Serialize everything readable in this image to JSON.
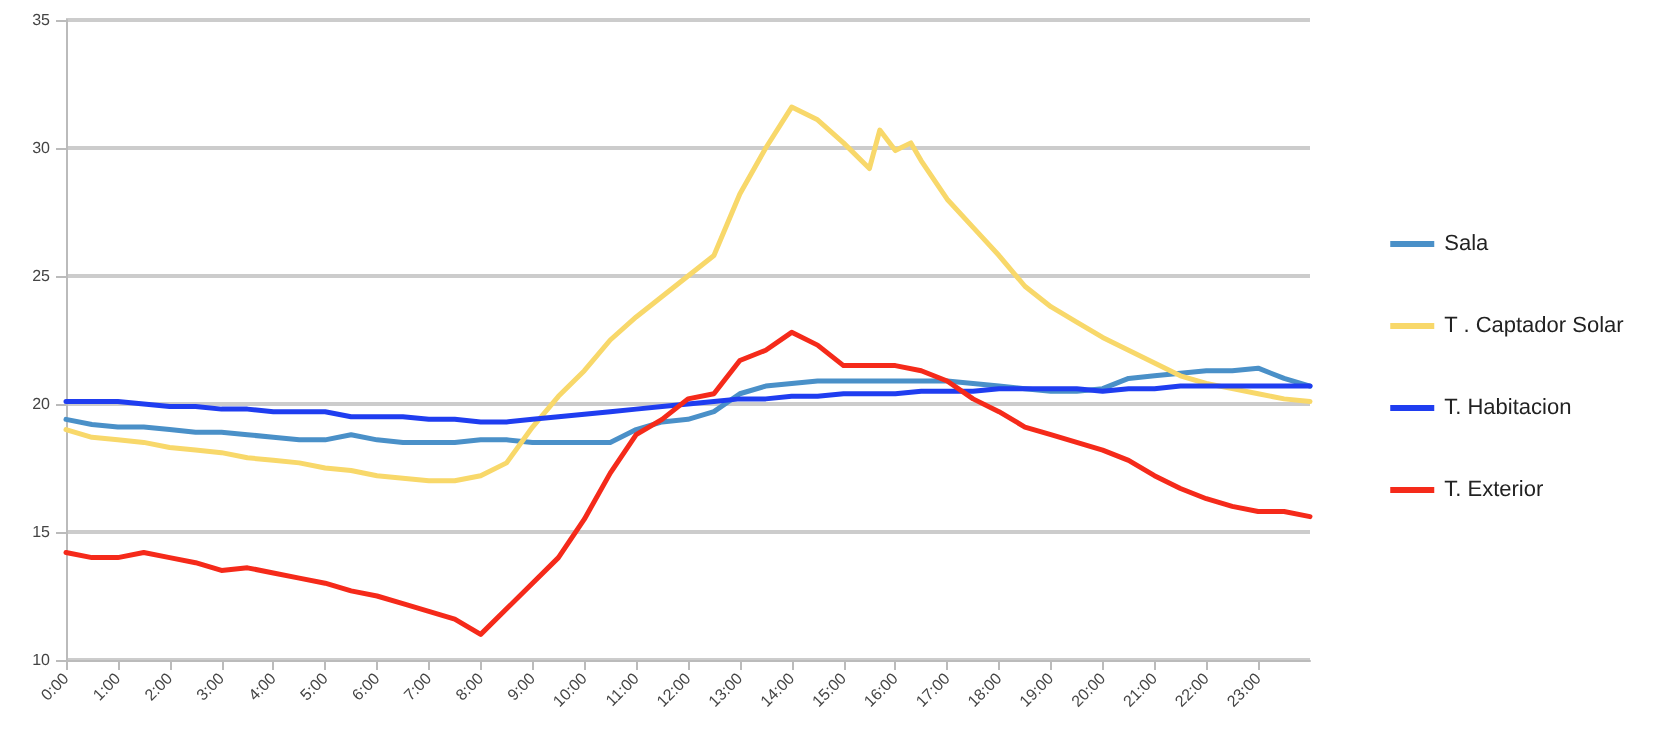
{
  "chart_data": {
    "type": "line",
    "x": [
      0,
      0.5,
      1,
      1.5,
      2,
      2.5,
      3,
      3.5,
      4,
      4.5,
      5,
      5.5,
      6,
      6.5,
      7,
      7.5,
      8,
      8.5,
      9,
      9.5,
      10,
      10.5,
      11,
      11.5,
      12,
      12.5,
      13,
      13.5,
      14,
      14.5,
      15,
      15.5,
      16,
      16.5,
      17,
      17.5,
      18,
      18.5,
      19,
      19.5,
      20,
      20.5,
      21,
      21.5,
      22,
      22.5,
      23,
      23.5,
      24
    ],
    "series": [
      {
        "name": "Sala",
        "color": "#4a90c8",
        "values": [
          19.4,
          19.2,
          19.1,
          19.1,
          19.0,
          18.9,
          18.9,
          18.8,
          18.7,
          18.6,
          18.6,
          18.8,
          18.6,
          18.5,
          18.5,
          18.5,
          18.6,
          18.6,
          18.5,
          18.5,
          18.5,
          18.5,
          19.0,
          19.3,
          19.4,
          19.7,
          20.4,
          20.7,
          20.8,
          20.9,
          20.9,
          20.9,
          20.9,
          20.9,
          20.9,
          20.8,
          20.7,
          20.6,
          20.5,
          20.5,
          20.6,
          21.0,
          21.1,
          21.2,
          21.3,
          21.3,
          21.4,
          21.0,
          20.7
        ]
      },
      {
        "name": "T . Captador Solar",
        "color": "#f8d86a",
        "x": [
          0,
          0.5,
          1,
          1.5,
          2,
          2.5,
          3,
          3.5,
          4,
          4.5,
          5,
          5.5,
          6,
          6.5,
          7,
          7.5,
          8,
          8.5,
          9,
          9.5,
          10,
          10.5,
          11,
          11.5,
          12,
          12.5,
          13,
          13.5,
          14,
          14.5,
          15,
          15.5,
          15.7,
          16,
          16.3,
          16.5,
          17,
          17.5,
          18,
          18.5,
          19,
          19.5,
          20,
          20.5,
          21,
          21.5,
          22,
          22.5,
          23,
          23.5,
          24
        ],
        "values": [
          19.0,
          18.7,
          18.6,
          18.5,
          18.3,
          18.2,
          18.1,
          17.9,
          17.8,
          17.7,
          17.5,
          17.4,
          17.2,
          17.1,
          17.0,
          17.0,
          17.2,
          17.7,
          19.1,
          20.3,
          21.3,
          22.5,
          23.4,
          24.2,
          25.0,
          25.8,
          28.2,
          30.0,
          31.6,
          31.1,
          30.2,
          29.2,
          30.7,
          29.9,
          30.2,
          29.5,
          28.0,
          26.9,
          25.8,
          24.6,
          23.8,
          23.2,
          22.6,
          22.1,
          21.6,
          21.1,
          20.8,
          20.6,
          20.4,
          20.2,
          20.1
        ]
      },
      {
        "name": "T. Habitacion",
        "color": "#1f3df0",
        "values": [
          20.1,
          20.1,
          20.1,
          20.0,
          19.9,
          19.9,
          19.8,
          19.8,
          19.7,
          19.7,
          19.7,
          19.5,
          19.5,
          19.5,
          19.4,
          19.4,
          19.3,
          19.3,
          19.4,
          19.5,
          19.6,
          19.7,
          19.8,
          19.9,
          20.0,
          20.1,
          20.2,
          20.2,
          20.3,
          20.3,
          20.4,
          20.4,
          20.4,
          20.5,
          20.5,
          20.5,
          20.6,
          20.6,
          20.6,
          20.6,
          20.5,
          20.6,
          20.6,
          20.7,
          20.7,
          20.7,
          20.7,
          20.7,
          20.7
        ]
      },
      {
        "name": "T. Exterior",
        "color": "#f52a1a",
        "values": [
          14.2,
          14.0,
          14.0,
          14.2,
          14.0,
          13.8,
          13.5,
          13.6,
          13.4,
          13.2,
          13.0,
          12.7,
          12.5,
          12.2,
          11.9,
          11.6,
          11.0,
          12.0,
          13.0,
          14.0,
          15.5,
          17.3,
          18.8,
          19.4,
          20.2,
          20.4,
          21.7,
          22.1,
          22.8,
          22.3,
          21.5,
          21.5,
          21.5,
          21.3,
          20.9,
          20.2,
          19.7,
          19.1,
          18.8,
          18.5,
          18.2,
          17.8,
          17.2,
          16.7,
          16.3,
          16.0,
          15.8,
          15.8,
          15.6
        ]
      }
    ],
    "xlim": [
      0,
      24
    ],
    "xticks": [
      {
        "value": 0,
        "label": "0:00"
      },
      {
        "value": 1,
        "label": "1:00"
      },
      {
        "value": 2,
        "label": "2:00"
      },
      {
        "value": 3,
        "label": "3:00"
      },
      {
        "value": 4,
        "label": "4:00"
      },
      {
        "value": 5,
        "label": "5:00"
      },
      {
        "value": 6,
        "label": "6:00"
      },
      {
        "value": 7,
        "label": "7:00"
      },
      {
        "value": 8,
        "label": "8:00"
      },
      {
        "value": 9,
        "label": "9:00"
      },
      {
        "value": 10,
        "label": "10:00"
      },
      {
        "value": 11,
        "label": "11:00"
      },
      {
        "value": 12,
        "label": "12:00"
      },
      {
        "value": 13,
        "label": "13:00"
      },
      {
        "value": 14,
        "label": "14:00"
      },
      {
        "value": 15,
        "label": "15:00"
      },
      {
        "value": 16,
        "label": "16:00"
      },
      {
        "value": 17,
        "label": "17:00"
      },
      {
        "value": 18,
        "label": "18:00"
      },
      {
        "value": 19,
        "label": "19:00"
      },
      {
        "value": 20,
        "label": "20:00"
      },
      {
        "value": 21,
        "label": "21:00"
      },
      {
        "value": 22,
        "label": "22:00"
      },
      {
        "value": 23,
        "label": "23:00"
      }
    ],
    "ylim": [
      10,
      35
    ],
    "yticks": [
      10,
      15,
      20,
      25,
      30,
      35
    ],
    "grid": "y",
    "legend": "right",
    "marker": "none",
    "line_style": "solid"
  }
}
